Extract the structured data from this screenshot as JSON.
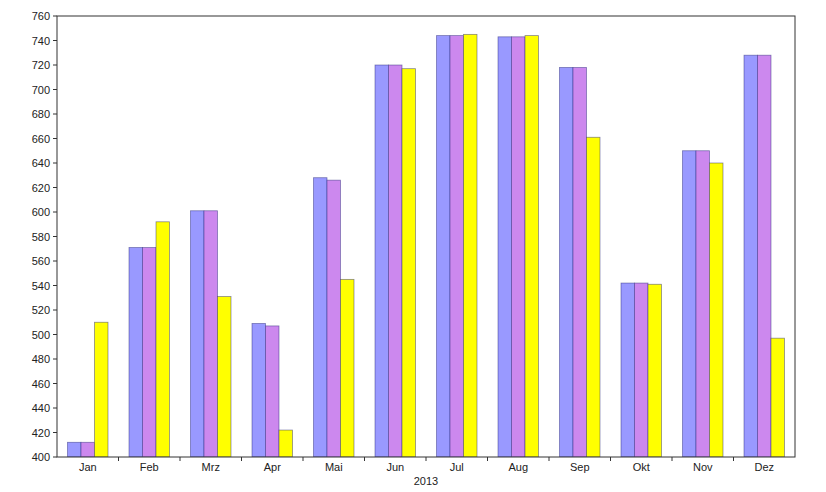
{
  "chart_data": {
    "type": "bar",
    "xlabel": "2013",
    "categories": [
      "Jan",
      "Feb",
      "Mrz",
      "Apr",
      "Mai",
      "Jun",
      "Jul",
      "Aug",
      "Sep",
      "Okt",
      "Nov",
      "Dez"
    ],
    "series": [
      {
        "color": "#9999ff",
        "values": [
          412,
          571,
          601,
          509,
          628,
          720,
          744,
          743,
          718,
          542,
          650,
          728
        ]
      },
      {
        "color": "#cc88ee",
        "values": [
          412,
          571,
          601,
          507,
          626,
          720,
          744,
          743,
          718,
          542,
          650,
          728
        ]
      },
      {
        "color": "#ffff00",
        "values": [
          510,
          592,
          531,
          422,
          545,
          717,
          745,
          744,
          661,
          541,
          640,
          497
        ]
      }
    ],
    "ylim": [
      400,
      760
    ],
    "yticks": [
      400,
      420,
      440,
      460,
      480,
      500,
      520,
      540,
      560,
      580,
      600,
      620,
      640,
      660,
      680,
      700,
      720,
      740,
      760
    ],
    "grid": false
  }
}
